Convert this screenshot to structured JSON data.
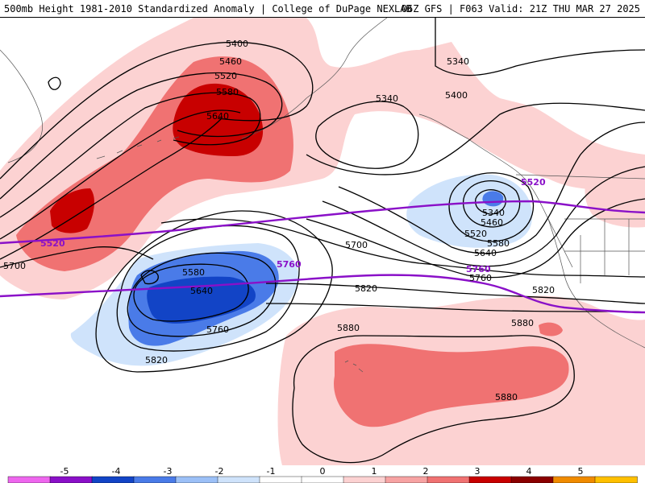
{
  "header": {
    "title_left": "500mb Height 1981-2010 Standardized Anomaly | College of DuPage NEXLAB",
    "title_right": "06Z GFS | F063 Valid: 21Z THU MAR 27 2025"
  },
  "colors": {
    "pos1": "#fcd2d2",
    "pos2": "#f07272",
    "pos3": "#c80000",
    "neg1": "#cfe3fb",
    "neg2": "#4a7be8",
    "neg3": "#1244c6",
    "contour": "#000000",
    "highlight": "#8a10c8",
    "land_line": "#555555"
  },
  "contour_labels": [
    {
      "id": "h5400-aleutian",
      "text": "5400"
    },
    {
      "id": "h5460-aleutian",
      "text": "5460"
    },
    {
      "id": "h5520-aleutian",
      "text": "5520"
    },
    {
      "id": "h5580-aleutian",
      "text": "5580"
    },
    {
      "id": "h5640-aleutian",
      "text": "5640"
    },
    {
      "id": "h5340-alaska",
      "text": "5340"
    },
    {
      "id": "h5400-canada",
      "text": "5400"
    },
    {
      "id": "h5340-canada",
      "text": "5340"
    },
    {
      "id": "h5520-purple-east",
      "text": "5520"
    },
    {
      "id": "h5340-low",
      "text": "5340"
    },
    {
      "id": "h5460-low",
      "text": "5460"
    },
    {
      "id": "h5520-low",
      "text": "5520"
    },
    {
      "id": "h5580-low",
      "text": "5580"
    },
    {
      "id": "h5640-low",
      "text": "5640"
    },
    {
      "id": "h5700-center",
      "text": "5700"
    },
    {
      "id": "h5760-purple-center",
      "text": "5760"
    },
    {
      "id": "h5760-purple-east",
      "text": "5760"
    },
    {
      "id": "h5760-east",
      "text": "5760"
    },
    {
      "id": "h5820-east",
      "text": "5820"
    },
    {
      "id": "h5820-center",
      "text": "5820"
    },
    {
      "id": "h5520-purple-west",
      "text": "5520"
    },
    {
      "id": "h5700-west",
      "text": "5700"
    },
    {
      "id": "h5580-trough",
      "text": "5580"
    },
    {
      "id": "h5640-trough",
      "text": "5640"
    },
    {
      "id": "h5760-trough",
      "text": "5760"
    },
    {
      "id": "h5820-trough",
      "text": "5820"
    },
    {
      "id": "h5880-hawaii",
      "text": "5880"
    },
    {
      "id": "h5880-east",
      "text": "5880"
    },
    {
      "id": "h5880-south",
      "text": "5880"
    }
  ],
  "colorbar": {
    "ticks": [
      "-5",
      "-4",
      "-3",
      "-2",
      "-1",
      "0",
      "1",
      "2",
      "3",
      "4",
      "5"
    ],
    "bins": [
      "#ee66ee",
      "#8a10c8",
      "#1244c6",
      "#4a7be8",
      "#9cc0f7",
      "#cfe3fb",
      "#ffffff",
      "#ffffff",
      "#fcd2d2",
      "#f7a3a3",
      "#f07272",
      "#c80000",
      "#8a0000",
      "#f08b00",
      "#ffc000"
    ]
  }
}
